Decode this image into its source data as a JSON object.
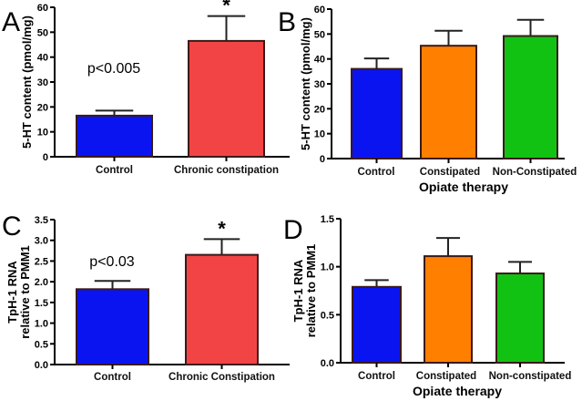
{
  "chart_data": [
    {
      "panel": "A",
      "type": "bar",
      "ylabel": "5-HT content (pmol/mg)",
      "xlabel": "",
      "ylim": [
        0,
        60
      ],
      "yticks": [
        "0",
        "10",
        "20",
        "30",
        "40",
        "50",
        "60"
      ],
      "ytick_values": [
        0,
        10,
        20,
        30,
        40,
        50,
        60
      ],
      "categories": [
        "Control",
        "Chronic constipation"
      ],
      "values": [
        16.5,
        46.5
      ],
      "errors": [
        2.0,
        10.0
      ],
      "colors": [
        "#0a14f0",
        "#f24444"
      ],
      "annotations": [
        {
          "text": "p<0.005"
        },
        {
          "text": "*",
          "category": "Chronic constipation"
        }
      ]
    },
    {
      "panel": "B",
      "type": "bar",
      "ylabel": "5-HT content (pmol/mg)",
      "xlabel": "Opiate therapy",
      "ylim": [
        0,
        60
      ],
      "yticks": [
        "0",
        "10",
        "20",
        "30",
        "40",
        "50",
        "60"
      ],
      "ytick_values": [
        0,
        10,
        20,
        30,
        40,
        50,
        60
      ],
      "categories": [
        "Control",
        "Constipated",
        "Non-Constipated"
      ],
      "values": [
        36,
        45.3,
        49.2
      ],
      "errors": [
        4.2,
        6.0,
        6.5
      ],
      "colors": [
        "#0a14f0",
        "#ff7f00",
        "#12c212"
      ],
      "annotations": []
    },
    {
      "panel": "C",
      "type": "bar",
      "ylabel": "TpH-1 RNA relative to PMM1",
      "ylabel_lines": [
        "TpH-1 RNA",
        "relative to PMM1"
      ],
      "xlabel": "",
      "ylim": [
        0,
        3.5
      ],
      "yticks": [
        "0.0",
        "0.5",
        "1.0",
        "1.5",
        "2.0",
        "2.5",
        "3.0",
        "3.5"
      ],
      "ytick_values": [
        0,
        0.5,
        1,
        1.5,
        2,
        2.5,
        3,
        3.5
      ],
      "categories": [
        "Control",
        "Chronic Constipation"
      ],
      "values": [
        1.82,
        2.65
      ],
      "errors": [
        0.2,
        0.38
      ],
      "colors": [
        "#0a14f0",
        "#f24444"
      ],
      "annotations": [
        {
          "text": "p<0.03"
        },
        {
          "text": "*",
          "category": "Chronic Constipation"
        }
      ]
    },
    {
      "panel": "D",
      "type": "bar",
      "ylabel": "TpH-1 RNA relative to PMM1",
      "ylabel_lines": [
        "TpH-1 RNA",
        "relative to PMM1"
      ],
      "xlabel": "Opiate therapy",
      "ylim": [
        0,
        1.5
      ],
      "yticks": [
        "0.0",
        "0.5",
        "1.0",
        "1.5"
      ],
      "ytick_values": [
        0,
        0.5,
        1,
        1.5
      ],
      "categories": [
        "Control",
        "Constipated",
        "Non-constipated"
      ],
      "values": [
        0.79,
        1.11,
        0.93
      ],
      "errors": [
        0.07,
        0.19,
        0.12
      ],
      "colors": [
        "#0a14f0",
        "#ff7f00",
        "#12c212"
      ],
      "annotations": []
    }
  ]
}
